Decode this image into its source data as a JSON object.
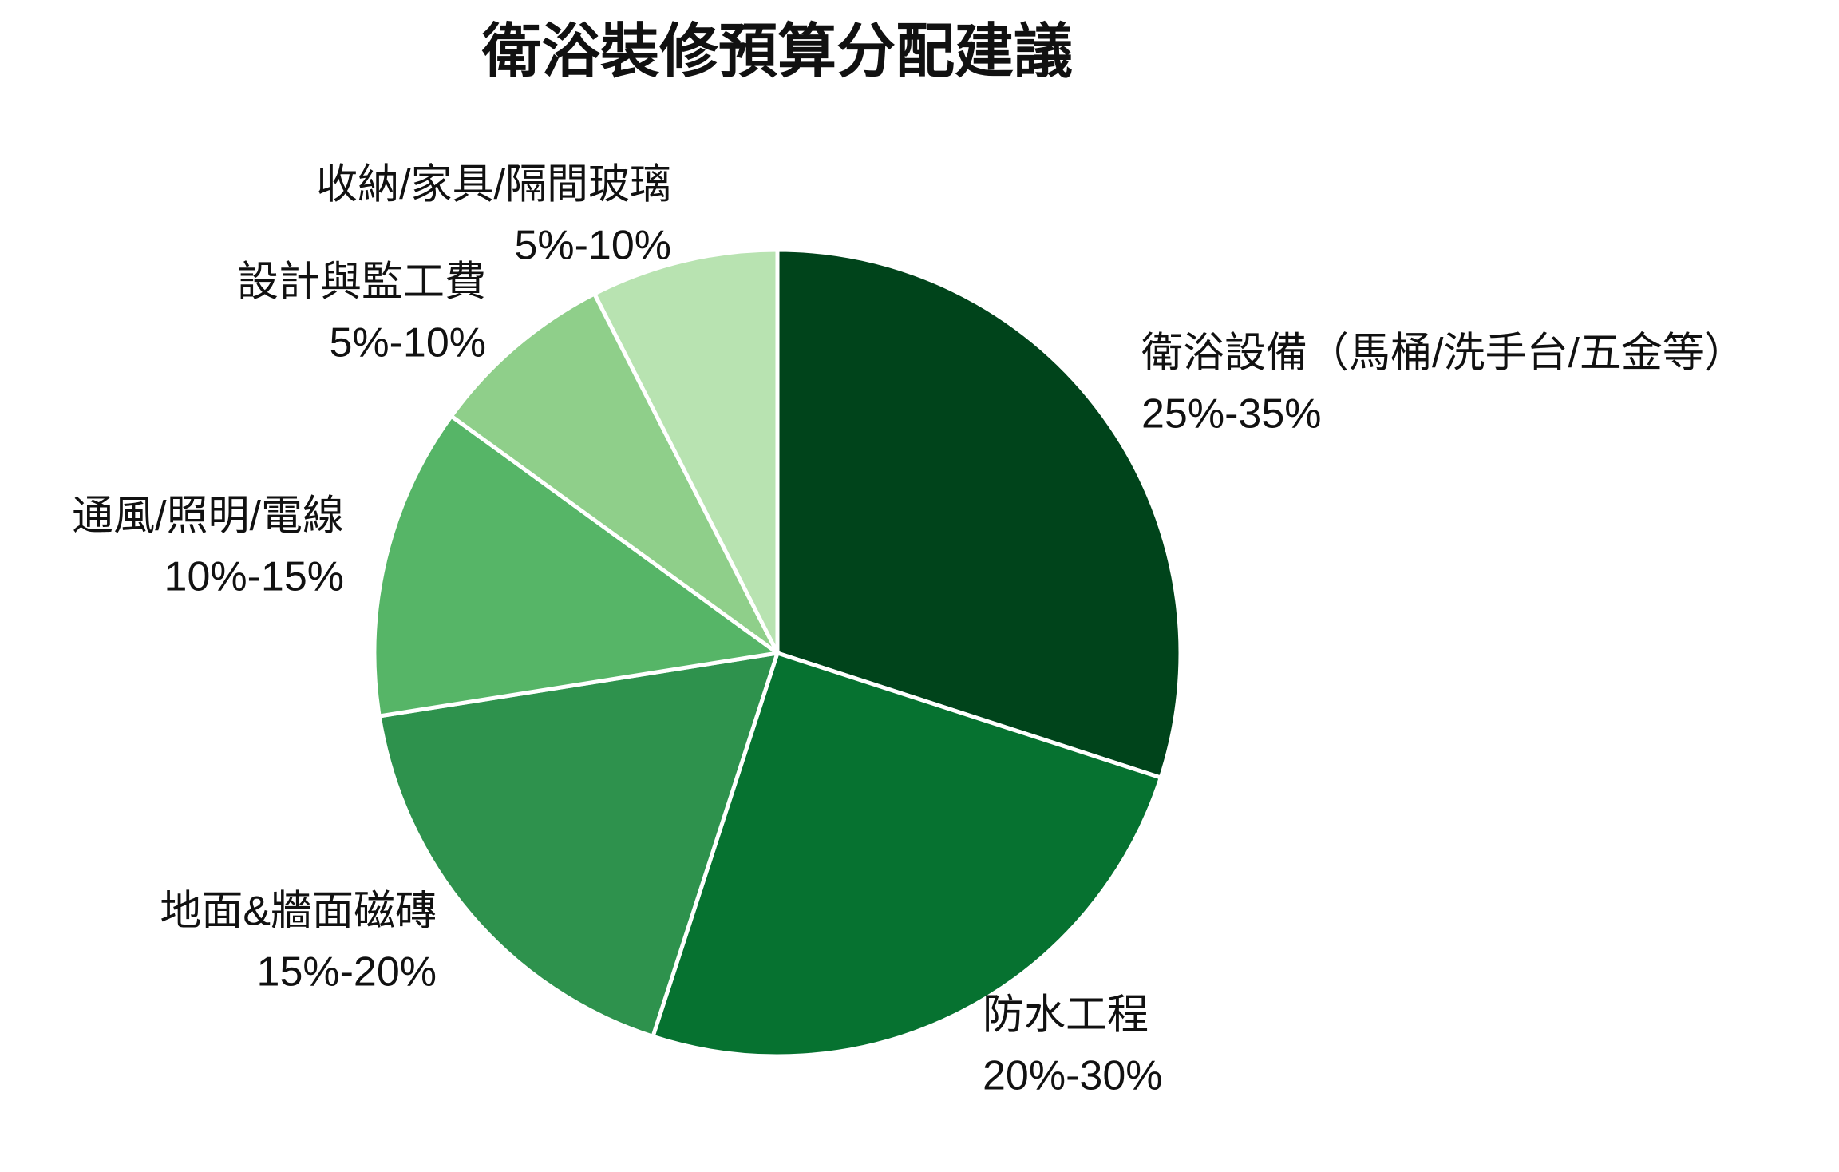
{
  "chart_data": {
    "type": "pie",
    "title": "衛浴裝修預算分配建議",
    "categories": [
      "衛浴設備（馬桶/洗手台/五金等）",
      "防水工程",
      "地面&牆面磁磚",
      "通風/照明/電線",
      "設計與監工費",
      "收納/家具/隔間玻璃"
    ],
    "ranges": [
      "25%-35%",
      "20%-30%",
      "15%-20%",
      "10%-15%",
      "5%-10%",
      "5%-10%"
    ],
    "values": [
      30,
      25,
      17.5,
      12.5,
      7.5,
      7.5
    ],
    "colors": [
      "#00441b",
      "#067230",
      "#2e924d",
      "#56b567",
      "#8fcf8a",
      "#b8e3b1"
    ],
    "start_angle": 90,
    "direction": "clockwise"
  }
}
